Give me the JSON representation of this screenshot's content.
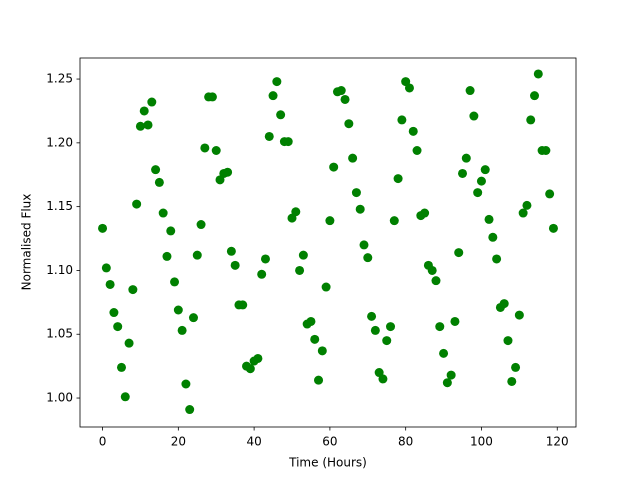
{
  "chart_data": {
    "type": "scatter",
    "xlabel": "Time (Hours)",
    "ylabel": "Normalised Flux",
    "color": "#008000",
    "x": [
      0,
      1,
      2,
      3,
      4,
      5,
      6,
      7,
      8,
      9,
      10,
      11,
      12,
      13,
      14,
      15,
      16,
      17,
      18,
      19,
      20,
      21,
      22,
      23,
      24,
      25,
      26,
      27,
      28,
      29,
      30,
      31,
      32,
      33,
      34,
      35,
      36,
      37,
      38,
      39,
      40,
      41,
      42,
      43,
      44,
      45,
      46,
      47,
      48,
      49,
      50,
      51,
      52,
      53,
      54,
      55,
      56,
      57,
      58,
      59,
      60,
      61,
      62,
      63,
      64,
      65,
      66,
      67,
      68,
      69,
      70,
      71,
      72,
      73,
      74,
      75,
      76,
      77,
      78,
      79,
      80,
      81,
      82,
      83,
      84,
      85,
      86,
      87,
      88,
      89,
      90,
      91,
      92,
      93,
      94,
      95,
      96,
      97,
      98,
      99,
      100,
      101,
      102,
      103,
      104,
      105,
      106,
      107,
      108,
      109,
      110,
      111,
      112,
      113,
      114,
      115,
      116,
      117,
      118,
      119
    ],
    "values": [
      1.133,
      1.102,
      1.089,
      1.067,
      1.056,
      1.024,
      1.001,
      1.043,
      1.085,
      1.152,
      1.213,
      1.225,
      1.214,
      1.232,
      1.179,
      1.169,
      1.145,
      1.111,
      1.131,
      1.091,
      1.069,
      1.053,
      1.011,
      0.991,
      1.063,
      1.112,
      1.136,
      1.196,
      1.236,
      1.236,
      1.194,
      1.171,
      1.176,
      1.177,
      1.115,
      1.104,
      1.073,
      1.073,
      1.025,
      1.023,
      1.029,
      1.031,
      1.097,
      1.109,
      1.205,
      1.237,
      1.248,
      1.222,
      1.201,
      1.201,
      1.141,
      1.146,
      1.1,
      1.112,
      1.058,
      1.06,
      1.046,
      1.014,
      1.037,
      1.087,
      1.139,
      1.181,
      1.24,
      1.241,
      1.234,
      1.215,
      1.188,
      1.161,
      1.148,
      1.12,
      1.11,
      1.064,
      1.053,
      1.02,
      1.015,
      1.045,
      1.056,
      1.139,
      1.172,
      1.218,
      1.248,
      1.243,
      1.209,
      1.194,
      1.143,
      1.145,
      1.104,
      1.1,
      1.092,
      1.056,
      1.035,
      1.012,
      1.018,
      1.06,
      1.114,
      1.176,
      1.188,
      1.241,
      1.221,
      1.161,
      1.17,
      1.179,
      1.14,
      1.126,
      1.109,
      1.071,
      1.074,
      1.045,
      1.013,
      1.024,
      1.065,
      1.145,
      1.151,
      1.218,
      1.237,
      1.254,
      1.194,
      1.194,
      1.16,
      1.133
    ],
    "xlim": [
      -5.95,
      124.95
    ],
    "xticks": [
      0,
      20,
      40,
      60,
      80,
      100,
      120
    ],
    "ylim": [
      0.9773,
      1.2665
    ],
    "yticks": [
      {
        "value": 1,
        "label": "1.00"
      },
      1.05,
      {
        "value": 1.1,
        "label": "1.10"
      },
      1.15,
      {
        "value": 1.2,
        "label": "1.20"
      },
      1.25
    ]
  }
}
